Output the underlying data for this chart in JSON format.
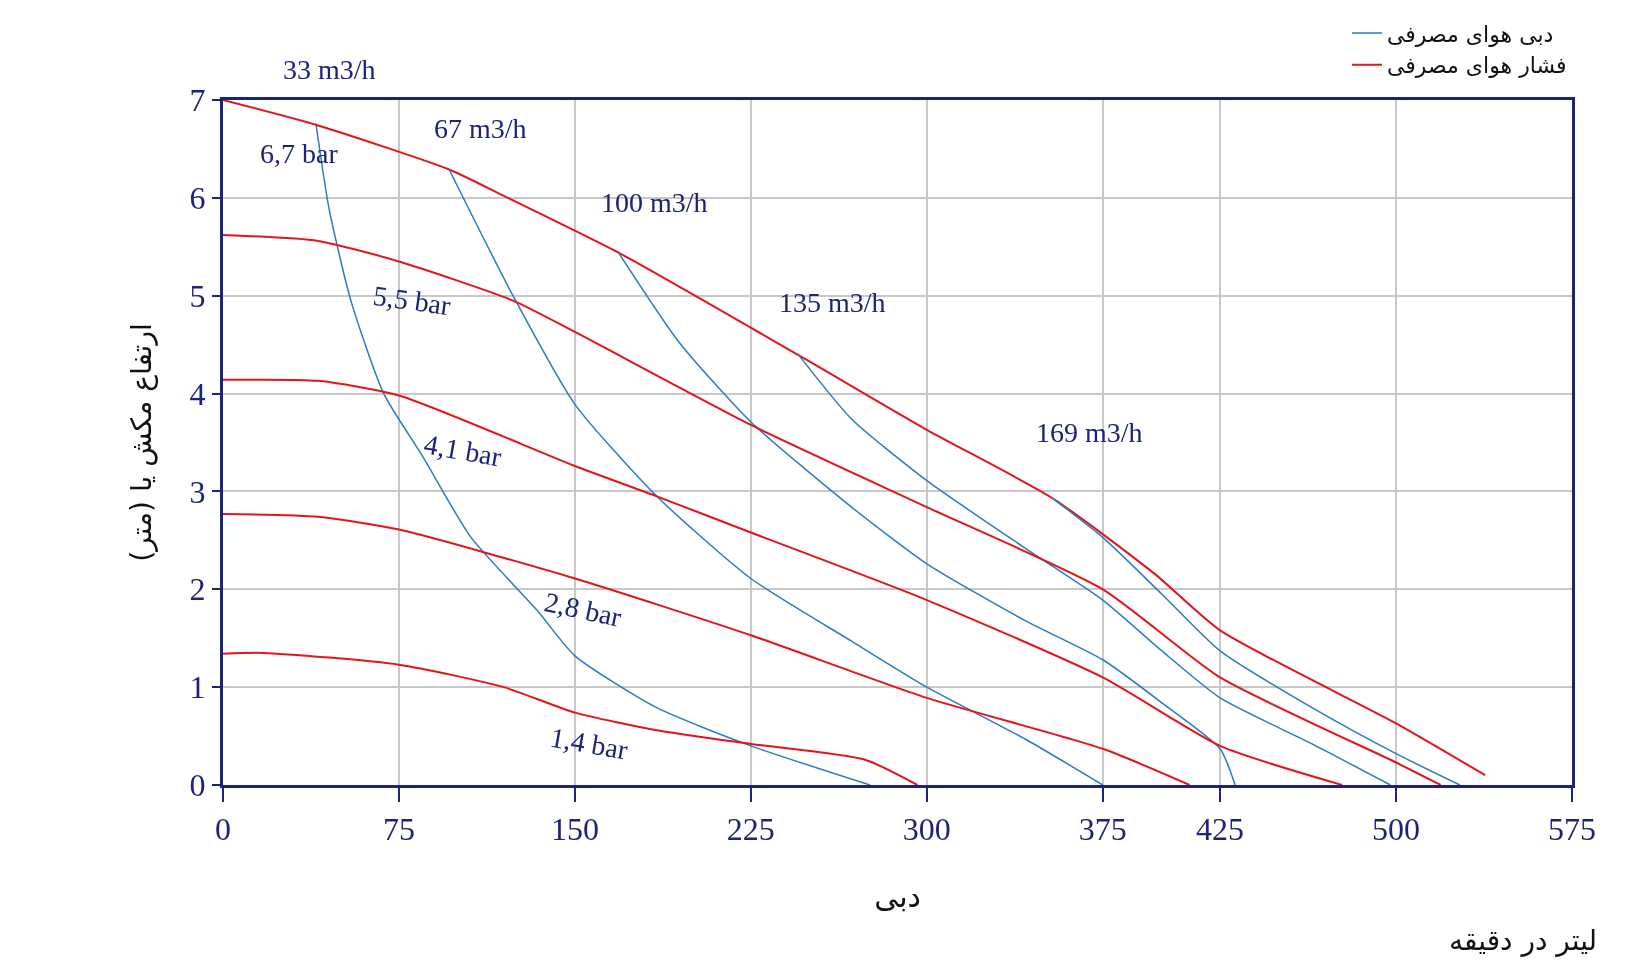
{
  "chart_data": {
    "type": "line",
    "xlabel": "دبی",
    "ylabel": "ارتفاع مکش یا (متر)",
    "legend": "top right",
    "grid": true,
    "marker": "none",
    "line_style": "solid",
    "xlim": [
      0,
      575
    ],
    "xticks": [
      0,
      75,
      150,
      225,
      300,
      375,
      425,
      500,
      575
    ],
    "ylim": [
      0,
      7
    ],
    "yticks": [
      0,
      1,
      2,
      3,
      4,
      5,
      6,
      7
    ],
    "series": [
      {
        "name": "دبی هوای مصرفی",
        "color": "#2b7bc0",
        "x": [
          39.6,
          45.2,
          54.5,
          68.5,
          84.8,
          105.7,
          133.7,
          150,
          184.9,
          225,
          275.8
        ],
        "values": [
          6.76,
          5.89,
          4.95,
          4.0,
          3.37,
          2.53,
          1.79,
          1.32,
          0.79,
          0.4,
          0
        ]
      },
      {
        "name": "فشار هوای مصرفی",
        "color": "#e3141b",
        "x": [
          0,
          40.5,
          96.4,
          119.7,
          168.6,
          245.5,
          300,
          353.6,
          397,
          425,
          500,
          538
        ],
        "values": [
          7.0,
          6.74,
          6.29,
          6.02,
          5.44,
          4.39,
          3.63,
          2.93,
          2.16,
          1.58,
          0.63,
          0.1
        ]
      },
      {
        "color": "#2b7bc0",
        "x": [
          96.4,
          123.6,
          150,
          184.9,
          225,
          267.9,
          300,
          341.9,
          375
        ],
        "values": [
          6.29,
          5.0,
          3.89,
          2.95,
          2.11,
          1.47,
          1.0,
          0.47,
          0
        ]
      },
      {
        "color": "#2b7bc0",
        "x": [
          168.6,
          194.2,
          225,
          267.9,
          300,
          341.9,
          375,
          400.2,
          425,
          431.4
        ],
        "values": [
          5.44,
          4.53,
          3.71,
          2.84,
          2.26,
          1.68,
          1.28,
          0.84,
          0.37,
          0
        ]
      },
      {
        "color": "#2b7bc0",
        "x": [
          245.5,
          267.9,
          300,
          341.9,
          375,
          400.2,
          425,
          464.2,
          497.6
        ],
        "values": [
          4.39,
          3.74,
          3.11,
          2.42,
          1.89,
          1.37,
          0.89,
          0.42,
          0
        ]
      },
      {
        "color": "#2b7bc0",
        "x": [
          353.6,
          375,
          400.2,
          425,
          464.2,
          500,
          527.2
        ],
        "values": [
          2.93,
          2.53,
          1.95,
          1.37,
          0.79,
          0.32,
          0
        ]
      },
      {
        "color": "#e3141b",
        "x": [
          0,
          40.5,
          75,
          123.6,
          150,
          225,
          300,
          375,
          425,
          500,
          519
        ],
        "values": [
          5.62,
          5.56,
          5.35,
          4.95,
          4.63,
          3.68,
          2.84,
          2.0,
          1.1,
          0.23,
          0
        ]
      },
      {
        "color": "#e3141b",
        "x": [
          0,
          40.5,
          75,
          150,
          184.9,
          225,
          300,
          375,
          425,
          477
        ],
        "values": [
          4.14,
          4.13,
          3.98,
          3.26,
          2.95,
          2.58,
          1.89,
          1.1,
          0.4,
          0
        ]
      },
      {
        "color": "#e3141b",
        "x": [
          0,
          40.5,
          75,
          150,
          225,
          300,
          375,
          412
        ],
        "values": [
          2.77,
          2.74,
          2.61,
          2.11,
          1.53,
          0.89,
          0.37,
          0
        ]
      },
      {
        "color": "#e3141b",
        "x": [
          0,
          17.2,
          75,
          119.7,
          150,
          184.9,
          225,
          273.4,
          296
        ],
        "values": [
          1.34,
          1.35,
          1.23,
          1.0,
          0.74,
          0.56,
          0.42,
          0.26,
          0
        ]
      }
    ],
    "annotations": [
      "لیتر در دقیقه",
      "33 m3/h",
      "6,7 bar",
      "67 m3/h",
      "100 m3/h",
      "135 m3/h",
      "169 m3/h",
      "5,5 bar",
      "4,1 bar",
      "2,8 bar",
      "1,4 bar"
    ]
  }
}
